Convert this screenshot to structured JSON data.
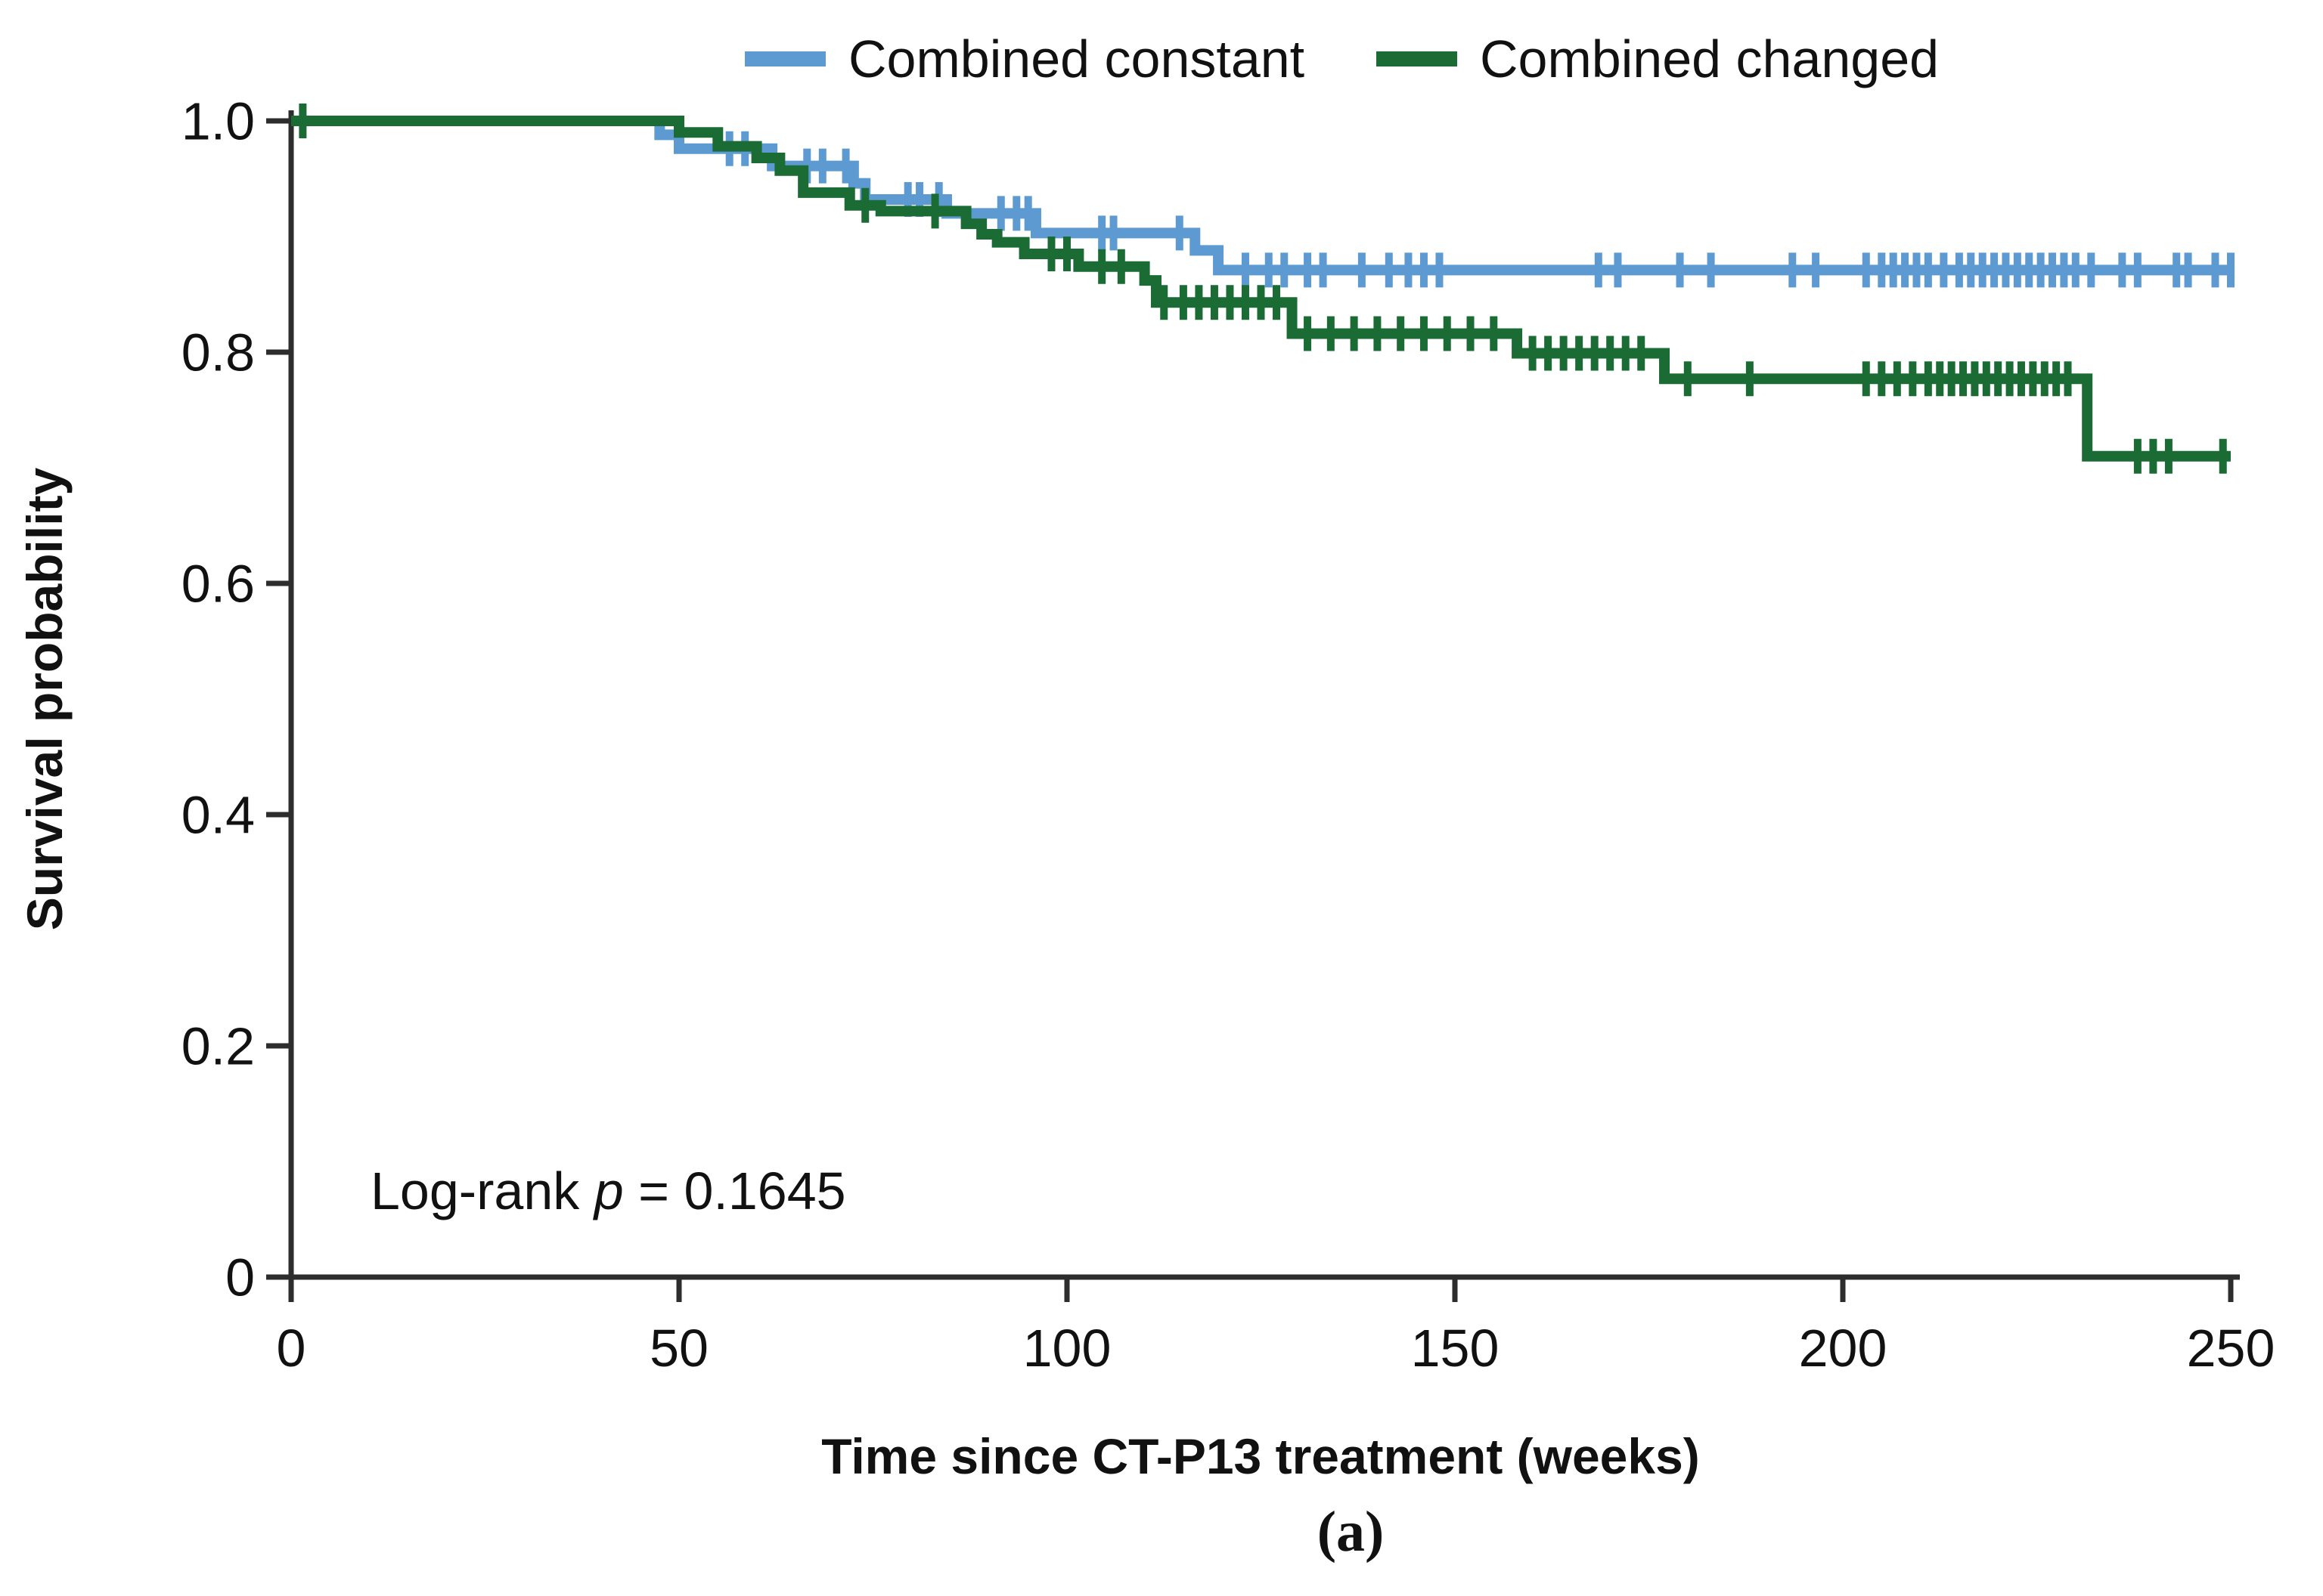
{
  "caption": "(a)",
  "log_rank": {
    "prefix": "Log-rank ",
    "p": "p",
    "suffix": " = 0.1645"
  },
  "chart_data": {
    "type": "line",
    "subtype": "kaplan-meier-step",
    "title": "",
    "xlabel": "Time since CT-P13 treatment (weeks)",
    "ylabel": "Survival probability",
    "xlim": [
      0,
      250
    ],
    "ylim": [
      0,
      1.0
    ],
    "grid": false,
    "legend_position": "top",
    "x_ticks": [
      0,
      50,
      100,
      150,
      200,
      250
    ],
    "y_ticks": [
      {
        "label": "1.0",
        "value": 1.0
      },
      {
        "label": "0.8",
        "value": 0.8
      },
      {
        "label": "0.6",
        "value": 0.6
      },
      {
        "label": "0.4",
        "value": 0.4
      },
      {
        "label": "0.2",
        "value": 0.2
      },
      {
        "label": "0",
        "value": 0.0
      }
    ],
    "series": [
      {
        "name": "Combined constant",
        "color": "#5e9ad2",
        "end": 250,
        "steps": [
          [
            0,
            1.0
          ],
          [
            47.5,
            0.988
          ],
          [
            50,
            0.976
          ],
          [
            62,
            0.961
          ],
          [
            72.5,
            0.946
          ],
          [
            74,
            0.932
          ],
          [
            84.5,
            0.92
          ],
          [
            96,
            0.903
          ],
          [
            116.5,
            0.888
          ],
          [
            119.5,
            0.871
          ]
        ],
        "censors": [
          56.5,
          58.5,
          66.5,
          68.5,
          71.5,
          79.5,
          81,
          83.5,
          91.5,
          93.5,
          95,
          104.5,
          106,
          114.5,
          123,
          126,
          128,
          131,
          133,
          138,
          141.5,
          144,
          146,
          148,
          168.5,
          171,
          179,
          183,
          193.5,
          196.5,
          203,
          205,
          206.5,
          208,
          209.5,
          211,
          213,
          215,
          216.5,
          218,
          219.5,
          221,
          222.5,
          224,
          225.5,
          227,
          228.5,
          230,
          232,
          236,
          238,
          243,
          244.5,
          248,
          250
        ]
      },
      {
        "name": "Combined changed",
        "color": "#1b6c34",
        "end": 250,
        "steps": [
          [
            0,
            1.0
          ],
          [
            50,
            0.99
          ],
          [
            55,
            0.978
          ],
          [
            60,
            0.968
          ],
          [
            63,
            0.957
          ],
          [
            66,
            0.938
          ],
          [
            72,
            0.927
          ],
          [
            76,
            0.922
          ],
          [
            87,
            0.911
          ],
          [
            89,
            0.902
          ],
          [
            91,
            0.895
          ],
          [
            94.5,
            0.885
          ],
          [
            101.5,
            0.874
          ],
          [
            110,
            0.862
          ],
          [
            111.5,
            0.843
          ],
          [
            129,
            0.816
          ],
          [
            158,
            0.799
          ],
          [
            177,
            0.777
          ],
          [
            231.5,
            0.71
          ]
        ],
        "censors": [
          1.5,
          74,
          83,
          98,
          100,
          104.5,
          107,
          112.5,
          115,
          117,
          119,
          121,
          123,
          125,
          127,
          131,
          134,
          137,
          140,
          143,
          146,
          149,
          152,
          155,
          160,
          162,
          164,
          166,
          168,
          170,
          172,
          174,
          180,
          188,
          203,
          205,
          207,
          209,
          211,
          212.5,
          214,
          215.5,
          217,
          218.5,
          220,
          221.5,
          223,
          224.5,
          226,
          227.5,
          229,
          238,
          240,
          242,
          249
        ]
      }
    ]
  }
}
